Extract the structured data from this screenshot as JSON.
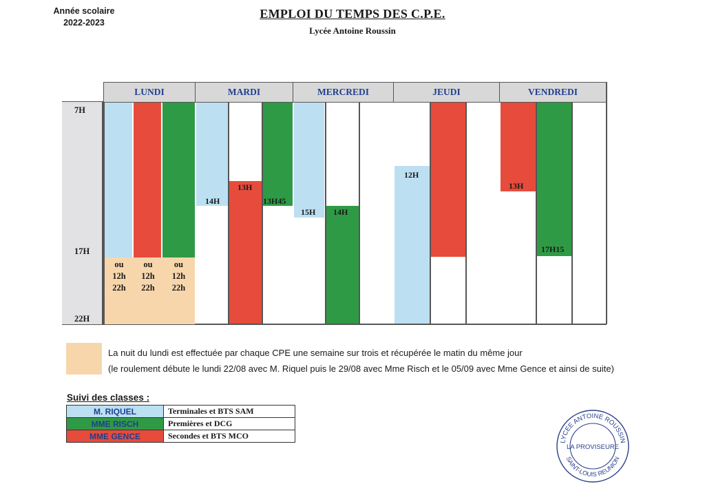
{
  "header": {
    "year_label": "Année scolaire",
    "year_value": "2022-2023",
    "title": "EMPLOI DU TEMPS DES C.P.E.",
    "subtitle": "Lycée Antoine Roussin"
  },
  "days": [
    "LUNDI",
    "MARDI",
    "MERCREDI",
    "JEUDI",
    "VENDREDI"
  ],
  "times": {
    "start": "7H",
    "mid": "17H",
    "end": "22H"
  },
  "block_labels": {
    "mardi_blue": "14H",
    "mardi_red": "13H",
    "mardi_green": "13H45",
    "mercredi_blue": "15H",
    "mercredi_green": "14H",
    "jeudi_blue": "12H",
    "vendredi_red": "13H",
    "vendredi_green": "17H15"
  },
  "night_cells": [
    [
      "ou",
      "12h",
      "22h"
    ],
    [
      "ou",
      "12h",
      "22h"
    ],
    [
      "ou",
      "12h",
      "22h"
    ]
  ],
  "legend": {
    "line1": "La nuit du lundi est effectuée par chaque CPE une semaine sur trois et récupérée le matin du même jour",
    "line2": "(le roulement débute le lundi 22/08 avec M. Riquel puis le 29/08 avec Mme Risch et le 05/09 avec Mme Gence et ainsi de suite)"
  },
  "classes": {
    "title": "Suivi des classes :",
    "rows": [
      {
        "name": "M. RIQUEL",
        "desc": "Terminales et BTS SAM",
        "color": "#bcdff2"
      },
      {
        "name": "MME RISCH",
        "desc": "Premières et DCG",
        "color": "#2f9a45"
      },
      {
        "name": "MME GENCE",
        "desc": "Secondes et BTS MCO",
        "color": "#e64b3b"
      }
    ]
  },
  "stamp": {
    "top_text": "LYCEE ANTOINE ROUSSIN",
    "center_text": "LA PROVISEURE",
    "bottom_text": "SAINT-LOUIS REUNION"
  },
  "colors": {
    "blue": "#bcdff2",
    "red": "#e64b3b",
    "green": "#2f9a45",
    "peach": "#f7d6ac",
    "header_text": "#1f3f8f"
  }
}
